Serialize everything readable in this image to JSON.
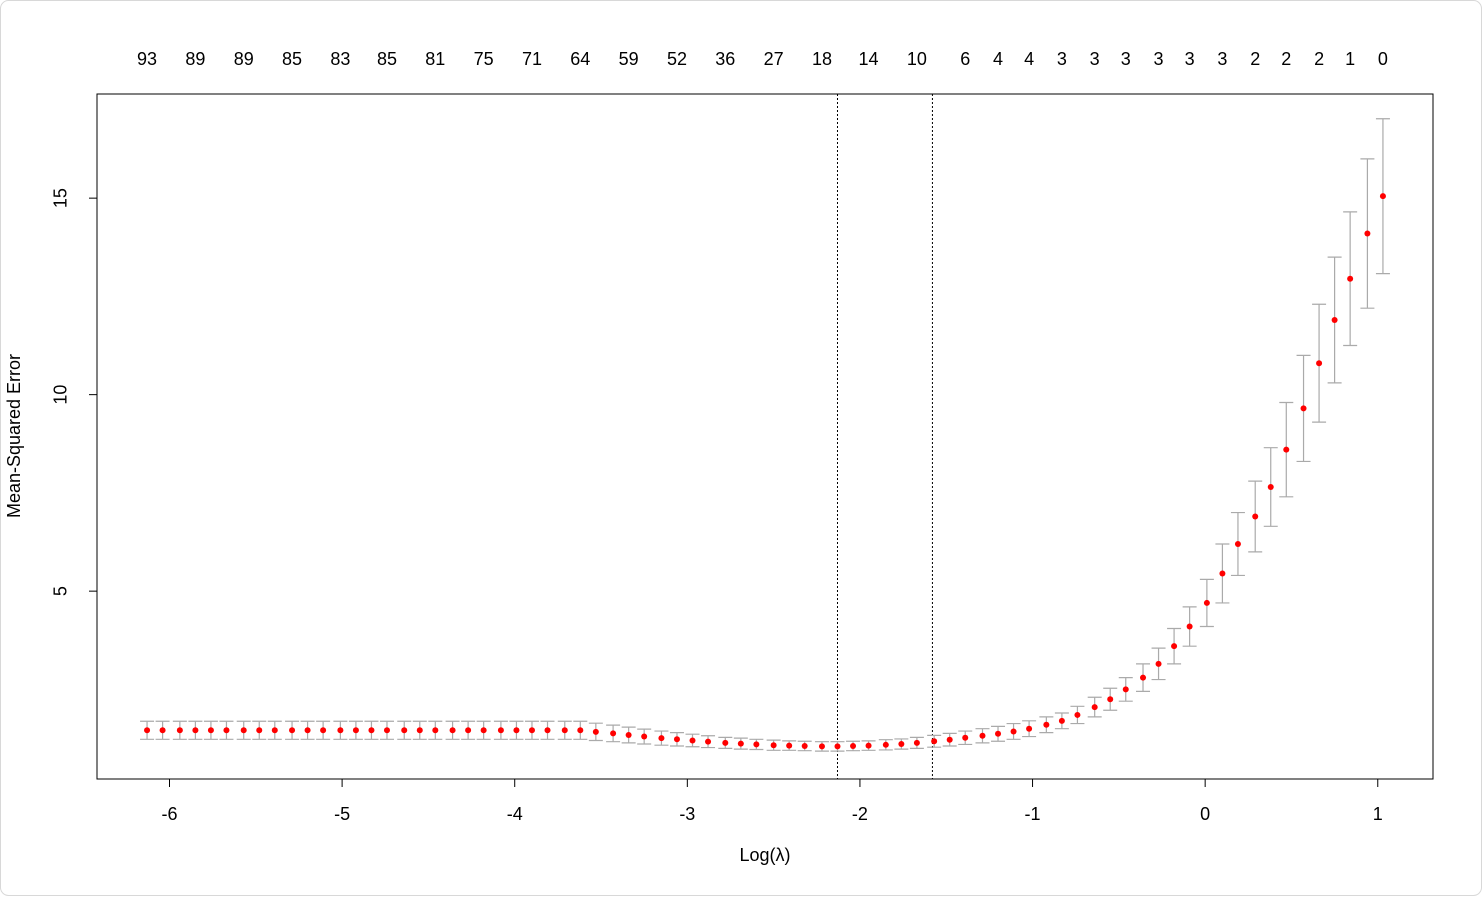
{
  "chart_data": {
    "type": "errorbar",
    "x_label": "Log(λ)",
    "y_label": "Mean-Squared Error",
    "x": [
      -6.13,
      -6.04,
      -5.94,
      -5.85,
      -5.76,
      -5.67,
      -5.57,
      -5.48,
      -5.39,
      -5.29,
      -5.2,
      -5.11,
      -5.01,
      -4.92,
      -4.83,
      -4.74,
      -4.64,
      -4.55,
      -4.46,
      -4.36,
      -4.27,
      -4.18,
      -4.08,
      -3.99,
      -3.9,
      -3.81,
      -3.71,
      -3.62,
      -3.53,
      -3.43,
      -3.34,
      -3.25,
      -3.15,
      -3.06,
      -2.97,
      -2.88,
      -2.78,
      -2.69,
      -2.6,
      -2.5,
      -2.41,
      -2.32,
      -2.22,
      -2.13,
      -2.04,
      -1.95,
      -1.85,
      -1.76,
      -1.67,
      -1.57,
      -1.48,
      -1.39,
      -1.29,
      -1.2,
      -1.11,
      -1.02,
      -0.92,
      -0.83,
      -0.74,
      -0.64,
      -0.55,
      -0.46,
      -0.36,
      -0.27,
      -0.18,
      -0.09,
      0.01,
      0.1,
      0.19,
      0.29,
      0.38,
      0.47,
      0.57,
      0.66,
      0.75,
      0.84,
      0.94,
      1.03
    ],
    "values": [
      1.46,
      1.46,
      1.46,
      1.46,
      1.46,
      1.46,
      1.46,
      1.46,
      1.46,
      1.46,
      1.46,
      1.46,
      1.46,
      1.46,
      1.46,
      1.46,
      1.46,
      1.46,
      1.46,
      1.46,
      1.46,
      1.46,
      1.46,
      1.46,
      1.46,
      1.46,
      1.46,
      1.46,
      1.42,
      1.38,
      1.34,
      1.3,
      1.26,
      1.23,
      1.2,
      1.17,
      1.14,
      1.12,
      1.1,
      1.08,
      1.07,
      1.06,
      1.05,
      1.05,
      1.06,
      1.07,
      1.09,
      1.11,
      1.14,
      1.18,
      1.22,
      1.27,
      1.32,
      1.37,
      1.43,
      1.5,
      1.6,
      1.7,
      1.85,
      2.05,
      2.25,
      2.5,
      2.8,
      3.15,
      3.6,
      4.1,
      4.7,
      5.45,
      6.2,
      6.9,
      7.65,
      8.6,
      9.65,
      10.8,
      11.9,
      12.95,
      14.1,
      15.05
    ],
    "errors": [
      0.23,
      0.23,
      0.23,
      0.23,
      0.23,
      0.23,
      0.23,
      0.23,
      0.23,
      0.23,
      0.23,
      0.23,
      0.23,
      0.23,
      0.23,
      0.23,
      0.23,
      0.23,
      0.23,
      0.23,
      0.23,
      0.23,
      0.23,
      0.23,
      0.23,
      0.23,
      0.23,
      0.23,
      0.22,
      0.21,
      0.2,
      0.19,
      0.18,
      0.17,
      0.16,
      0.15,
      0.14,
      0.14,
      0.13,
      0.13,
      0.12,
      0.12,
      0.12,
      0.12,
      0.12,
      0.12,
      0.13,
      0.13,
      0.14,
      0.15,
      0.16,
      0.17,
      0.18,
      0.19,
      0.2,
      0.2,
      0.2,
      0.2,
      0.22,
      0.25,
      0.28,
      0.3,
      0.35,
      0.4,
      0.45,
      0.5,
      0.6,
      0.75,
      0.8,
      0.9,
      1.0,
      1.2,
      1.35,
      1.5,
      1.6,
      1.7,
      1.9,
      1.97
    ],
    "color": "#ff0000",
    "error_color": "#aaaaaa",
    "xlim": [
      -6.42,
      1.32
    ],
    "ylim": [
      0.22,
      17.65
    ],
    "xticks": [
      -6,
      -5,
      -4,
      -3,
      -2,
      -1,
      0,
      1
    ],
    "yticks": [
      5,
      10,
      15
    ],
    "vlines": [
      -2.13,
      -1.58
    ],
    "top_axis": {
      "ticks": [
        -6.13,
        -5.85,
        -5.57,
        -5.29,
        -5.01,
        -4.74,
        -4.46,
        -4.18,
        -3.9,
        -3.62,
        -3.34,
        -3.06,
        -2.78,
        -2.5,
        -2.22,
        -1.95,
        -1.67,
        -1.39,
        -1.2,
        -1.02,
        -0.83,
        -0.64,
        -0.46,
        -0.27,
        -0.09,
        0.1,
        0.29,
        0.47,
        0.66,
        0.84,
        1.03
      ],
      "labels": [
        93,
        89,
        89,
        85,
        83,
        85,
        81,
        75,
        71,
        64,
        59,
        52,
        36,
        27,
        18,
        14,
        10,
        6,
        4,
        4,
        3,
        3,
        3,
        3,
        3,
        3,
        2,
        2,
        2,
        1,
        0
      ]
    }
  }
}
